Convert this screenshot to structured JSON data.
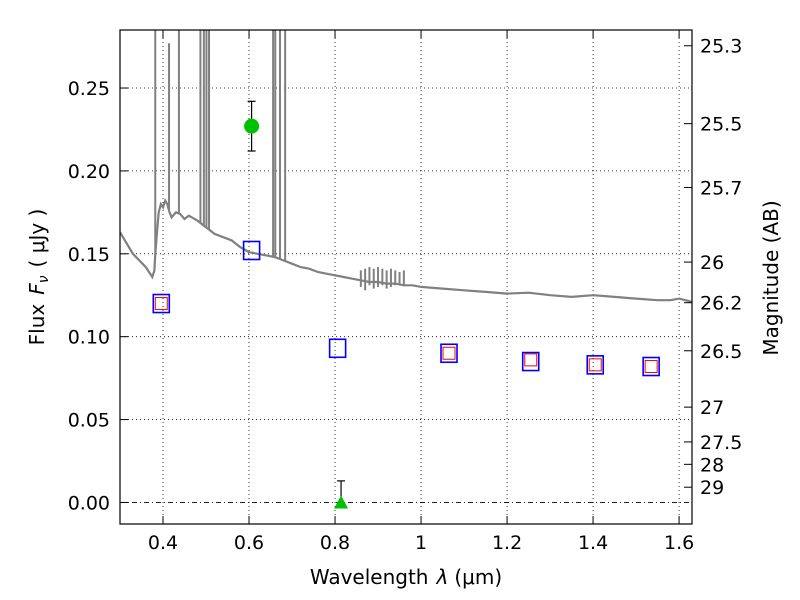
{
  "chart_data": {
    "type": "scatter",
    "xlabel_prefix": "Wavelength",
    "xlabel_symbol": "λ",
    "xlabel_unit": "(μm)",
    "ylabel_prefix": "Flux",
    "ylabel_symbol": "F",
    "ylabel_sub": "ν",
    "ylabel_unit": "( μJy )",
    "y2label": "Magnitude (AB)",
    "xlim": [
      0.3,
      1.63
    ],
    "ylim": [
      -0.013,
      0.285
    ],
    "xticks": [
      0.4,
      0.6,
      0.8,
      1.0,
      1.2,
      1.4,
      1.6
    ],
    "xtick_labels": [
      "0.4",
      "0.6",
      "0.8",
      "1",
      "1.2",
      "1.4",
      "1.6"
    ],
    "yticks": [
      0.0,
      0.05,
      0.1,
      0.15,
      0.2,
      0.25
    ],
    "ytick_labels": [
      "0.00",
      "0.05",
      "0.10",
      "0.15",
      "0.20",
      "0.25"
    ],
    "y2ticks": [
      {
        "flux": 0.2755,
        "label": "25.3"
      },
      {
        "flux": 0.2285,
        "label": "25.5"
      },
      {
        "flux": 0.19,
        "label": "25.7"
      },
      {
        "flux": 0.145,
        "label": "26"
      },
      {
        "flux": 0.1205,
        "label": "26.2"
      },
      {
        "flux": 0.0915,
        "label": "26.5"
      },
      {
        "flux": 0.0575,
        "label": "27"
      },
      {
        "flux": 0.0365,
        "label": "27.5"
      },
      {
        "flux": 0.023,
        "label": "28"
      },
      {
        "flux": 0.0092,
        "label": "29"
      }
    ],
    "grid": true,
    "colors": {
      "spectrum": "#808080",
      "model_box": "#0000ff",
      "observed_box": "#ff0000",
      "detection": "#00c000",
      "errorbar": "#000000"
    },
    "series": [
      {
        "name": "Model SED spectrum",
        "style": "line",
        "x": [
          0.3,
          0.33,
          0.36,
          0.375,
          0.38,
          0.382,
          0.385,
          0.39,
          0.395,
          0.4,
          0.405,
          0.41,
          0.415,
          0.42,
          0.43,
          0.44,
          0.45,
          0.46,
          0.48,
          0.5,
          0.52,
          0.54,
          0.56,
          0.58,
          0.6,
          0.62,
          0.64,
          0.66,
          0.68,
          0.7,
          0.72,
          0.74,
          0.76,
          0.78,
          0.8,
          0.82,
          0.84,
          0.86,
          0.88,
          0.9,
          0.92,
          0.94,
          0.96,
          0.98,
          1.0,
          1.05,
          1.1,
          1.15,
          1.2,
          1.25,
          1.3,
          1.35,
          1.4,
          1.45,
          1.5,
          1.55,
          1.58,
          1.6,
          1.63
        ],
        "y": [
          0.163,
          0.15,
          0.142,
          0.136,
          0.14,
          0.15,
          0.16,
          0.175,
          0.18,
          0.178,
          0.182,
          0.18,
          0.175,
          0.172,
          0.175,
          0.174,
          0.171,
          0.173,
          0.17,
          0.166,
          0.162,
          0.16,
          0.158,
          0.154,
          0.151,
          0.15,
          0.149,
          0.148,
          0.146,
          0.144,
          0.142,
          0.141,
          0.139,
          0.138,
          0.137,
          0.136,
          0.135,
          0.134,
          0.133,
          0.133,
          0.132,
          0.132,
          0.131,
          0.131,
          0.13,
          0.129,
          0.128,
          0.127,
          0.126,
          0.1265,
          0.125,
          0.124,
          0.125,
          0.124,
          0.123,
          0.122,
          0.122,
          0.123,
          0.121
        ]
      },
      {
        "name": "Spectrum emission lines",
        "style": "spikes",
        "x": [
          0.382,
          0.414,
          0.437,
          0.487,
          0.495,
          0.501,
          0.507,
          0.656,
          0.661,
          0.672,
          0.684
        ],
        "top": [
          0.285,
          0.277,
          0.285,
          0.285,
          0.285,
          0.285,
          0.285,
          0.285,
          0.285,
          0.285,
          0.285
        ]
      },
      {
        "name": "Absorption features",
        "style": "dips",
        "x": [
          0.86,
          0.87,
          0.88,
          0.89,
          0.9,
          0.91,
          0.92,
          0.93,
          0.94,
          0.95,
          0.96
        ],
        "top": [
          0.14,
          0.141,
          0.142,
          0.141,
          0.142,
          0.141,
          0.14,
          0.141,
          0.14,
          0.139,
          0.14
        ],
        "bottom": [
          0.13,
          0.128,
          0.131,
          0.129,
          0.13,
          0.131,
          0.129,
          0.13,
          0.131,
          0.132,
          0.131
        ]
      },
      {
        "name": "Model photometry",
        "style": "square-large",
        "x": [
          0.396,
          0.606,
          0.806,
          1.065,
          1.255,
          1.405,
          1.535
        ],
        "y": [
          0.12,
          0.152,
          0.093,
          0.09,
          0.085,
          0.083,
          0.082
        ]
      },
      {
        "name": "Observed photometry",
        "style": "square-small",
        "x": [
          0.396,
          1.065,
          1.255,
          1.405,
          1.535
        ],
        "y": [
          0.12,
          0.09,
          0.086,
          0.083,
          0.082
        ]
      },
      {
        "name": "Detection",
        "style": "circle",
        "x": [
          0.606
        ],
        "y": [
          0.227
        ],
        "yerr": [
          0.015
        ]
      },
      {
        "name": "Upper limit",
        "style": "triangle",
        "x": [
          0.814
        ],
        "y": [
          0.0
        ],
        "yerr": [
          0.013
        ]
      }
    ]
  }
}
